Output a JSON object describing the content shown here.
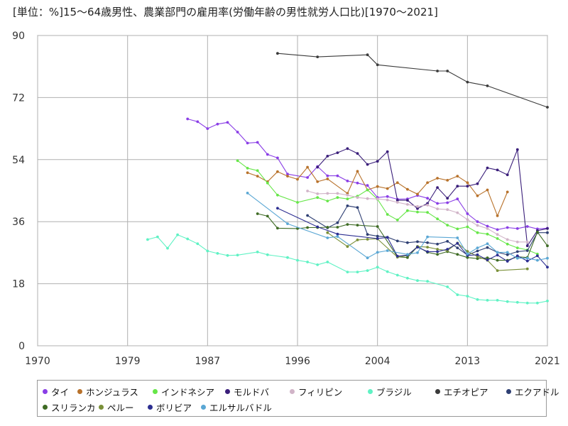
{
  "chart_data": {
    "type": "line",
    "title": "[単位：%]15～64歳男性、農業部門の雇用率(労働年齢の男性就労人口比)[1970～2021]",
    "xlabel": "",
    "ylabel": "",
    "xlim": [
      1970,
      2021
    ],
    "ylim": [
      0,
      90
    ],
    "x_ticks": [
      "1970",
      "1979",
      "1987",
      "1996",
      "2004",
      "2013",
      "2021"
    ],
    "y_ticks": [
      "0",
      "18",
      "36",
      "54",
      "72",
      "90"
    ],
    "grid": true,
    "legend_position": "bottom",
    "series": [
      {
        "name": "タイ",
        "color": "#8a3ee6",
        "points": [
          [
            1985,
            65.8
          ],
          [
            1986,
            65
          ],
          [
            1987,
            63
          ],
          [
            1988,
            64.3
          ],
          [
            1989,
            64.8
          ],
          [
            1990,
            62
          ],
          [
            1991,
            58.8
          ],
          [
            1992,
            59
          ],
          [
            1993,
            55.5
          ],
          [
            1994,
            54.5
          ],
          [
            1995,
            49.8
          ],
          [
            1997,
            48.8
          ],
          [
            1998,
            52
          ],
          [
            1999,
            49.3
          ],
          [
            2000,
            49.3
          ],
          [
            2001,
            47.8
          ],
          [
            2002,
            47.2
          ],
          [
            2003,
            46.5
          ],
          [
            2004,
            43
          ],
          [
            2005,
            43.3
          ],
          [
            2006,
            42.5
          ],
          [
            2007,
            42.6
          ],
          [
            2008,
            43.6
          ],
          [
            2009,
            42.8
          ],
          [
            2010,
            41.3
          ],
          [
            2011,
            41.5
          ],
          [
            2012,
            42.6
          ],
          [
            2013,
            38.3
          ],
          [
            2014,
            36
          ],
          [
            2015,
            34.7
          ],
          [
            2016,
            33.7
          ],
          [
            2017,
            34.3
          ],
          [
            2018,
            34
          ],
          [
            2019,
            34.6
          ],
          [
            2020,
            33.9
          ],
          [
            2021,
            34.1
          ]
        ]
      },
      {
        "name": "ホンジュラス",
        "color": "#b8722b",
        "points": [
          [
            1991,
            50.2
          ],
          [
            1992,
            49.2
          ],
          [
            1993,
            47.6
          ],
          [
            1994,
            50.5
          ],
          [
            1995,
            49.2
          ],
          [
            1996,
            48.3
          ],
          [
            1997,
            51.8
          ],
          [
            1998,
            47.6
          ],
          [
            1999,
            48.4
          ],
          [
            2001,
            44.2
          ],
          [
            2002,
            50.6
          ],
          [
            2003,
            45.2
          ],
          [
            2004,
            46.2
          ],
          [
            2005,
            45.6
          ],
          [
            2006,
            47.3
          ],
          [
            2007,
            45.4
          ],
          [
            2008,
            44
          ],
          [
            2009,
            47.3
          ],
          [
            2010,
            48.6
          ],
          [
            2011,
            48
          ],
          [
            2012,
            49.2
          ],
          [
            2013,
            47.3
          ],
          [
            2014,
            43.5
          ],
          [
            2015,
            45.2
          ],
          [
            2016,
            37.7
          ],
          [
            2017,
            44.6
          ]
        ]
      },
      {
        "name": "インドネシア",
        "color": "#66e648",
        "points": [
          [
            1990,
            53.7
          ],
          [
            1991,
            51.5
          ],
          [
            1992,
            50.8
          ],
          [
            1993,
            47.2
          ],
          [
            1994,
            43.7
          ],
          [
            1996,
            41.6
          ],
          [
            1998,
            43
          ],
          [
            1999,
            42
          ],
          [
            2000,
            43
          ],
          [
            2001,
            42.6
          ],
          [
            2002,
            43.4
          ],
          [
            2003,
            45.2
          ],
          [
            2004,
            42.5
          ],
          [
            2005,
            38.1
          ],
          [
            2006,
            36.5
          ],
          [
            2007,
            39.2
          ],
          [
            2008,
            38.8
          ],
          [
            2009,
            38.7
          ],
          [
            2010,
            36.8
          ],
          [
            2011,
            35
          ],
          [
            2012,
            33.9
          ],
          [
            2013,
            34.5
          ],
          [
            2014,
            32.8
          ],
          [
            2015,
            32.4
          ],
          [
            2016,
            31.1
          ],
          [
            2017,
            29.5
          ],
          [
            2018,
            28.4
          ],
          [
            2019,
            27.8
          ],
          [
            2020,
            26.6
          ]
        ]
      },
      {
        "name": "モルドバ",
        "color": "#3a1e7a",
        "points": [
          [
            1998,
            51.8
          ],
          [
            1999,
            55
          ],
          [
            2000,
            56
          ],
          [
            2001,
            57.2
          ],
          [
            2002,
            55.8
          ],
          [
            2003,
            52.6
          ],
          [
            2004,
            53.5
          ],
          [
            2005,
            56.3
          ],
          [
            2006,
            42.2
          ],
          [
            2007,
            42.2
          ],
          [
            2008,
            39.8
          ],
          [
            2009,
            41.3
          ],
          [
            2010,
            45.9
          ],
          [
            2011,
            42.8
          ],
          [
            2012,
            46.3
          ],
          [
            2013,
            46.3
          ],
          [
            2014,
            47
          ],
          [
            2015,
            51.6
          ],
          [
            2016,
            51
          ],
          [
            2017,
            49.6
          ],
          [
            2018,
            56.9
          ],
          [
            2019,
            29
          ],
          [
            2020,
            33.4
          ],
          [
            2021,
            34
          ]
        ]
      },
      {
        "name": "フィリピン",
        "color": "#d1b4c8",
        "points": [
          [
            1997,
            44.9
          ],
          [
            1998,
            44.1
          ],
          [
            1999,
            44.2
          ],
          [
            2000,
            44.2
          ],
          [
            2001,
            43.7
          ],
          [
            2002,
            43
          ],
          [
            2003,
            42.7
          ],
          [
            2004,
            42.6
          ],
          [
            2005,
            42.3
          ],
          [
            2006,
            41.6
          ],
          [
            2007,
            41
          ],
          [
            2008,
            40.4
          ],
          [
            2009,
            40.8
          ],
          [
            2010,
            39.7
          ],
          [
            2011,
            39.5
          ],
          [
            2012,
            38.6
          ],
          [
            2013,
            36.6
          ],
          [
            2014,
            34.9
          ],
          [
            2015,
            34
          ],
          [
            2016,
            32.3
          ],
          [
            2017,
            30.8
          ],
          [
            2018,
            30.1
          ],
          [
            2019,
            30.1
          ]
        ]
      },
      {
        "name": "ブラジル",
        "color": "#5ff2c4",
        "points": [
          [
            1981,
            30.8
          ],
          [
            1982,
            31.6
          ],
          [
            1983,
            28.3
          ],
          [
            1984,
            32.2
          ],
          [
            1985,
            31
          ],
          [
            1986,
            29.6
          ],
          [
            1987,
            27.5
          ],
          [
            1988,
            26.8
          ],
          [
            1989,
            26.2
          ],
          [
            1990,
            26.3
          ],
          [
            1992,
            27.2
          ],
          [
            1993,
            26.4
          ],
          [
            1995,
            25.6
          ],
          [
            1996,
            24.8
          ],
          [
            1997,
            24.3
          ],
          [
            1998,
            23.5
          ],
          [
            1999,
            24.3
          ],
          [
            2001,
            21.4
          ],
          [
            2002,
            21.4
          ],
          [
            2003,
            21.8
          ],
          [
            2004,
            22.8
          ],
          [
            2005,
            21.5
          ],
          [
            2006,
            20.5
          ],
          [
            2007,
            19.6
          ],
          [
            2008,
            18.9
          ],
          [
            2009,
            18.7
          ],
          [
            2011,
            17.1
          ],
          [
            2012,
            14.8
          ],
          [
            2013,
            14.4
          ],
          [
            2014,
            13.4
          ],
          [
            2015,
            13.2
          ],
          [
            2016,
            13.2
          ],
          [
            2017,
            12.8
          ],
          [
            2018,
            12.6
          ],
          [
            2019,
            12.4
          ],
          [
            2020,
            12.4
          ],
          [
            2021,
            13
          ]
        ]
      },
      {
        "name": "エチオピア",
        "color": "#3a3a3a",
        "points": [
          [
            1994,
            84.8
          ],
          [
            1998,
            83.8
          ],
          [
            2003,
            84.4
          ],
          [
            2004,
            81.5
          ],
          [
            2010,
            79.7
          ],
          [
            2011,
            79.7
          ],
          [
            2013,
            76.5
          ],
          [
            2015,
            75.4
          ],
          [
            2021,
            69.2
          ]
        ]
      },
      {
        "name": "エクアドル",
        "color": "#2e3f73",
        "points": [
          [
            1997,
            37.8
          ],
          [
            1999,
            34.2
          ],
          [
            2000,
            35.7
          ],
          [
            2001,
            40.6
          ],
          [
            2002,
            40.1
          ],
          [
            2003,
            32.3
          ],
          [
            2004,
            31.8
          ],
          [
            2005,
            31.5
          ],
          [
            2006,
            30.4
          ],
          [
            2007,
            29.9
          ],
          [
            2008,
            30.2
          ],
          [
            2009,
            29.9
          ],
          [
            2010,
            29.5
          ],
          [
            2011,
            30.3
          ],
          [
            2012,
            28.4
          ],
          [
            2013,
            26.3
          ],
          [
            2014,
            27.5
          ],
          [
            2015,
            28.5
          ],
          [
            2016,
            27.1
          ],
          [
            2017,
            26.4
          ],
          [
            2018,
            27.3
          ],
          [
            2019,
            27.6
          ],
          [
            2020,
            32.8
          ],
          [
            2021,
            32.8
          ]
        ]
      },
      {
        "name": "スリランカ",
        "color": "#3e6b24",
        "points": [
          [
            1992,
            38.3
          ],
          [
            1993,
            37.6
          ],
          [
            1994,
            34.1
          ],
          [
            1996,
            34
          ],
          [
            1997,
            34.3
          ],
          [
            1998,
            34.3
          ],
          [
            1999,
            34.4
          ],
          [
            2000,
            34.4
          ],
          [
            2001,
            35.2
          ],
          [
            2002,
            35
          ],
          [
            2004,
            34.6
          ],
          [
            2006,
            25.8
          ],
          [
            2007,
            25.6
          ],
          [
            2008,
            28.8
          ],
          [
            2009,
            27.1
          ],
          [
            2010,
            26.5
          ],
          [
            2011,
            27.3
          ],
          [
            2012,
            26.5
          ],
          [
            2013,
            25.6
          ],
          [
            2014,
            25.3
          ],
          [
            2015,
            25.5
          ],
          [
            2016,
            24.8
          ],
          [
            2017,
            24.8
          ],
          [
            2018,
            25.8
          ],
          [
            2019,
            25.6
          ],
          [
            2020,
            33
          ],
          [
            2021,
            29
          ]
        ]
      },
      {
        "name": "ペルー",
        "color": "#7a9038",
        "points": [
          [
            1999,
            32.8
          ],
          [
            2001,
            28.8
          ],
          [
            2002,
            30.7
          ],
          [
            2003,
            30.9
          ],
          [
            2004,
            31
          ],
          [
            2006,
            25.7
          ],
          [
            2007,
            26.2
          ],
          [
            2008,
            28.8
          ],
          [
            2009,
            28.6
          ],
          [
            2010,
            28
          ],
          [
            2011,
            27.6
          ],
          [
            2012,
            29.8
          ],
          [
            2013,
            27.4
          ],
          [
            2014,
            25.9
          ],
          [
            2015,
            24.8
          ],
          [
            2016,
            21.8
          ],
          [
            2019,
            22.3
          ]
        ]
      },
      {
        "name": "ボリビア",
        "color": "#2c2e91",
        "points": [
          [
            1994,
            39.9
          ],
          [
            1998,
            34.5
          ],
          [
            2000,
            32.4
          ],
          [
            2004,
            31.1
          ],
          [
            2005,
            31.4
          ],
          [
            2006,
            26
          ],
          [
            2007,
            26.3
          ],
          [
            2008,
            28.6
          ],
          [
            2009,
            27.3
          ],
          [
            2010,
            27.3
          ],
          [
            2011,
            28
          ],
          [
            2012,
            29.7
          ],
          [
            2013,
            26.2
          ],
          [
            2014,
            26.4
          ],
          [
            2015,
            24.9
          ],
          [
            2016,
            26.3
          ],
          [
            2017,
            24.5
          ],
          [
            2018,
            26.1
          ],
          [
            2019,
            24.6
          ],
          [
            2020,
            26.1
          ],
          [
            2021,
            22.8
          ]
        ]
      },
      {
        "name": "エルサルバドル",
        "color": "#5aa7d4",
        "points": [
          [
            1991,
            44.3
          ],
          [
            1995,
            35.4
          ],
          [
            1999,
            31.3
          ],
          [
            2000,
            31.7
          ],
          [
            2003,
            25.5
          ],
          [
            2004,
            27.1
          ],
          [
            2005,
            27.6
          ],
          [
            2007,
            26.5
          ],
          [
            2008,
            27
          ],
          [
            2009,
            31.6
          ],
          [
            2012,
            31.3
          ],
          [
            2013,
            26.6
          ],
          [
            2014,
            28.4
          ],
          [
            2015,
            29.6
          ],
          [
            2016,
            27.1
          ],
          [
            2017,
            27.1
          ],
          [
            2018,
            25.4
          ],
          [
            2019,
            25.4
          ],
          [
            2020,
            24.8
          ],
          [
            2021,
            25.4
          ]
        ]
      }
    ]
  }
}
